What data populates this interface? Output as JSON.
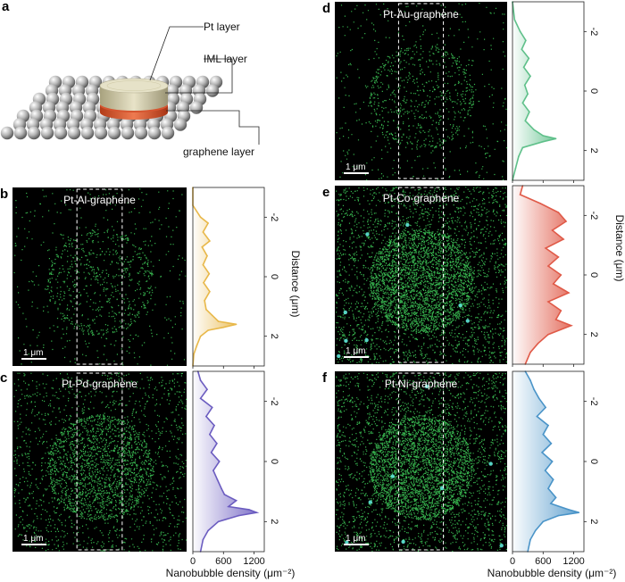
{
  "figure": {
    "schematic": {
      "panel_label": "a",
      "labels": [
        "Pt layer",
        "IML layer",
        "graphene layer"
      ],
      "colors": {
        "pt": "#d8d3b8",
        "iml": "#e2603a",
        "graphene": "#c8c8c8"
      }
    },
    "scale_bar_text": "1 μm",
    "axis_texts": {
      "distance_label": "Distance (μm)",
      "density_label": "Nanobubble density (μm⁻²)"
    },
    "panels": [
      {
        "label": "b",
        "title": "Pt-Al-graphene",
        "color": "#e8b84a",
        "dot_density": "low"
      },
      {
        "label": "c",
        "title": "Pt-Pd-graphene",
        "color": "#6b5cc0",
        "dot_density": "medium"
      },
      {
        "label": "d",
        "title": "Pt-Au-graphene",
        "color": "#5fc08a",
        "dot_density": "low"
      },
      {
        "label": "e",
        "title": "Pt-Co-graphene",
        "color": "#e05a48",
        "dot_density": "high"
      },
      {
        "label": "f",
        "title": "Pt-Ni-graphene",
        "color": "#4a94c8",
        "dot_density": "high"
      }
    ]
  },
  "chart_data": {
    "type": "line",
    "orientation": "profile plotted along vertical distance axis",
    "xlabel": "Nanobubble density (μm⁻²)",
    "ylabel": "Distance (μm)",
    "xlim": [
      0,
      1400
    ],
    "ylim": [
      -3,
      3
    ],
    "xticks": [
      0,
      600,
      1200
    ],
    "yticks": [
      -2,
      0,
      2
    ],
    "series": [
      {
        "name": "Pt-Al-graphene",
        "distance": [
          -3.0,
          -2.4,
          -2.0,
          -1.8,
          -1.5,
          -1.2,
          -1.0,
          -0.7,
          -0.4,
          -0.1,
          0.2,
          0.5,
          0.8,
          1.1,
          1.3,
          1.5,
          1.6,
          1.7,
          1.8,
          2.0,
          2.3,
          2.6,
          3.0
        ],
        "density": [
          0,
          0,
          150,
          300,
          200,
          330,
          180,
          280,
          200,
          320,
          210,
          330,
          230,
          260,
          380,
          500,
          850,
          600,
          300,
          150,
          80,
          20,
          0
        ]
      },
      {
        "name": "Pt-Pd-graphene",
        "distance": [
          -3.0,
          -2.7,
          -2.4,
          -2.1,
          -1.8,
          -1.5,
          -1.2,
          -0.9,
          -0.6,
          -0.3,
          0.0,
          0.3,
          0.6,
          0.9,
          1.1,
          1.3,
          1.5,
          1.6,
          1.7,
          1.8,
          2.0,
          2.3,
          2.6,
          3.0
        ],
        "density": [
          100,
          150,
          280,
          150,
          380,
          260,
          420,
          330,
          470,
          360,
          520,
          400,
          480,
          560,
          620,
          850,
          700,
          1100,
          1250,
          900,
          500,
          300,
          200,
          150
        ]
      },
      {
        "name": "Pt-Au-graphene",
        "distance": [
          -3.0,
          -2.4,
          -2.0,
          -1.7,
          -1.4,
          -1.1,
          -0.8,
          -0.5,
          -0.2,
          0.1,
          0.4,
          0.7,
          1.0,
          1.3,
          1.5,
          1.6,
          1.7,
          1.9,
          2.2,
          2.6,
          3.0
        ],
        "density": [
          0,
          40,
          150,
          260,
          180,
          320,
          220,
          350,
          240,
          300,
          200,
          330,
          250,
          420,
          600,
          850,
          600,
          200,
          120,
          60,
          0
        ]
      },
      {
        "name": "Pt-Co-graphene",
        "distance": [
          -3.0,
          -2.7,
          -2.4,
          -2.1,
          -1.8,
          -1.5,
          -1.2,
          -0.9,
          -0.6,
          -0.3,
          0.0,
          0.3,
          0.6,
          0.9,
          1.2,
          1.5,
          1.7,
          2.0,
          2.3,
          2.6,
          3.0
        ],
        "density": [
          200,
          150,
          550,
          900,
          1050,
          780,
          1000,
          650,
          900,
          700,
          950,
          800,
          1100,
          700,
          950,
          850,
          1150,
          700,
          500,
          350,
          250
        ]
      },
      {
        "name": "Pt-Ni-graphene",
        "distance": [
          -3.0,
          -2.7,
          -2.4,
          -2.1,
          -1.8,
          -1.5,
          -1.2,
          -0.9,
          -0.6,
          -0.3,
          0.0,
          0.3,
          0.6,
          0.9,
          1.2,
          1.4,
          1.6,
          1.7,
          1.8,
          2.0,
          2.3,
          2.6,
          3.0
        ],
        "density": [
          250,
          350,
          420,
          520,
          650,
          480,
          700,
          600,
          760,
          580,
          780,
          640,
          800,
          700,
          850,
          750,
          1100,
          1300,
          900,
          600,
          450,
          350,
          300
        ]
      }
    ]
  }
}
